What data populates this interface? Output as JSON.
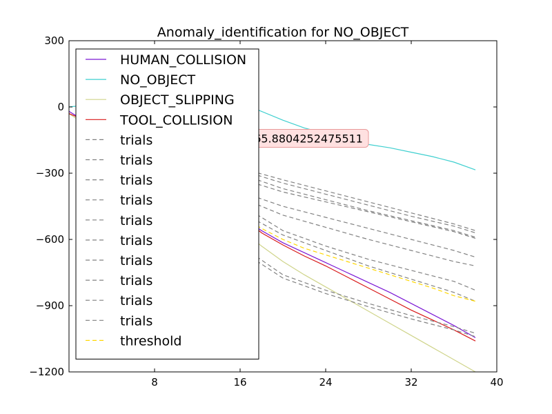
{
  "chart_data": {
    "type": "line",
    "title": "Anomaly_identification for NO_OBJECT",
    "xlabel": "",
    "ylabel": "",
    "xlim": [
      0,
      40
    ],
    "ylim": [
      -1200,
      300
    ],
    "xticks": [
      8,
      16,
      24,
      32,
      40
    ],
    "yticks": [
      300,
      0,
      -300,
      -600,
      -900,
      -1200
    ],
    "xtick_labels": [
      "8",
      "16",
      "24",
      "32",
      "40"
    ],
    "ytick_labels": [
      "300",
      "0",
      "−300",
      "−600",
      "−900",
      "−1200"
    ],
    "grid": false,
    "legend_position": "upper-left",
    "annotation": {
      "text": "565.8804252475511",
      "x": 28,
      "y": -142,
      "facecolor": "#ffe0e0",
      "edgecolor": "#e89a9a"
    },
    "series": [
      {
        "name": "HUMAN_COLLISION",
        "color": "#7b17d4",
        "dash": "solid",
        "x": [
          0,
          17,
          18,
          20,
          22,
          24,
          26,
          28,
          30,
          32,
          34,
          36,
          38
        ],
        "y": [
          -20,
          -525,
          -560,
          -615,
          -660,
          -705,
          -750,
          -795,
          -840,
          -890,
          -940,
          -990,
          -1045
        ]
      },
      {
        "name": "NO_OBJECT",
        "color": "#3ecfcf",
        "dash": "solid",
        "x": [
          0,
          1,
          2,
          17,
          18,
          20,
          22,
          24,
          26,
          28,
          30,
          32,
          34,
          36,
          38
        ],
        "y": [
          0,
          5,
          8,
          0,
          -20,
          -60,
          -95,
          -120,
          -150,
          -170,
          -185,
          -205,
          -225,
          -250,
          -285
        ]
      },
      {
        "name": "OBJECT_SLIPPING",
        "color": "#cfd48a",
        "dash": "solid",
        "x": [
          0,
          17,
          18,
          20,
          22,
          24,
          26,
          28,
          30,
          32,
          34,
          36,
          38
        ],
        "y": [
          -30,
          -590,
          -630,
          -700,
          -760,
          -815,
          -870,
          -925,
          -980,
          -1035,
          -1090,
          -1145,
          -1200
        ]
      },
      {
        "name": "TOOL_COLLISION",
        "color": "#d81818",
        "dash": "solid",
        "x": [
          0,
          1,
          17,
          18,
          20,
          22,
          24,
          26,
          28,
          30,
          32,
          34,
          36,
          38
        ],
        "y": [
          -30,
          -50,
          -530,
          -570,
          -625,
          -675,
          -720,
          -770,
          -820,
          -870,
          -920,
          -965,
          -1010,
          -1060
        ]
      },
      {
        "name": "trials",
        "color": "#808080",
        "dash": "dashed",
        "x": [
          17,
          20,
          24,
          28,
          32,
          36,
          38
        ],
        "y": [
          -290,
          -330,
          -380,
          -430,
          -480,
          -530,
          -560
        ]
      },
      {
        "name": "trials",
        "color": "#808080",
        "dash": "dashed",
        "x": [
          17,
          20,
          24,
          28,
          32,
          36,
          38
        ],
        "y": [
          -300,
          -345,
          -395,
          -445,
          -495,
          -540,
          -570
        ]
      },
      {
        "name": "trials",
        "color": "#808080",
        "dash": "dashed",
        "x": [
          17,
          20,
          24,
          28,
          32,
          36,
          38
        ],
        "y": [
          -320,
          -370,
          -420,
          -470,
          -515,
          -560,
          -590
        ]
      },
      {
        "name": "trials",
        "color": "#808080",
        "dash": "dashed",
        "x": [
          17,
          20,
          24,
          28,
          32,
          36,
          38
        ],
        "y": [
          -340,
          -385,
          -430,
          -475,
          -520,
          -565,
          -595
        ]
      },
      {
        "name": "trials",
        "color": "#808080",
        "dash": "dashed",
        "x": [
          17,
          20,
          24,
          28,
          32,
          36,
          38
        ],
        "y": [
          -400,
          -450,
          -500,
          -550,
          -600,
          -650,
          -680
        ]
      },
      {
        "name": "trials",
        "color": "#808080",
        "dash": "dashed",
        "x": [
          17,
          20,
          24,
          28,
          32,
          36,
          38
        ],
        "y": [
          -430,
          -490,
          -545,
          -600,
          -650,
          -700,
          -720
        ]
      },
      {
        "name": "trials",
        "color": "#808080",
        "dash": "dashed",
        "x": [
          17,
          20,
          24,
          28,
          32,
          36,
          38
        ],
        "y": [
          -470,
          -560,
          -630,
          -690,
          -740,
          -790,
          -830
        ]
      },
      {
        "name": "trials",
        "color": "#808080",
        "dash": "dashed",
        "x": [
          17,
          20,
          24,
          28,
          32,
          36,
          38
        ],
        "y": [
          -500,
          -580,
          -650,
          -720,
          -780,
          -840,
          -880
        ]
      },
      {
        "name": "trials",
        "color": "#808080",
        "dash": "dashed",
        "x": [
          17,
          20,
          24,
          28,
          32,
          36,
          38
        ],
        "y": [
          -660,
          -760,
          -830,
          -890,
          -945,
          -995,
          -1025
        ]
      },
      {
        "name": "trials",
        "color": "#808080",
        "dash": "dashed",
        "x": [
          17,
          20,
          24,
          28,
          32,
          36,
          38
        ],
        "y": [
          -680,
          -775,
          -845,
          -905,
          -960,
          -1010,
          -1040
        ]
      },
      {
        "name": "threshold",
        "color": "#ffd700",
        "dash": "dashed",
        "x": [
          17,
          18,
          20,
          22,
          24,
          26,
          28,
          30,
          32,
          34,
          36,
          38
        ],
        "y": [
          -520,
          -550,
          -600,
          -640,
          -670,
          -700,
          -730,
          -760,
          -790,
          -820,
          -855,
          -880
        ]
      }
    ]
  }
}
